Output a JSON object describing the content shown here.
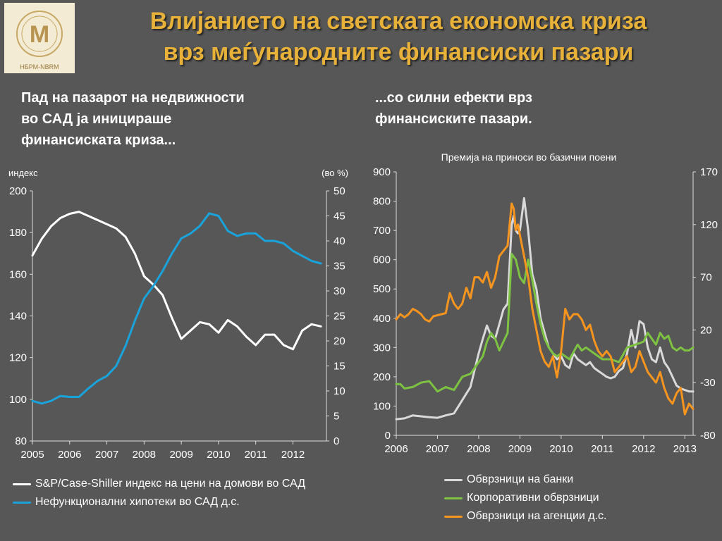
{
  "header": {
    "title_line1": "Влијанието на светската економска криза",
    "title_line2": "врз меѓународните финансиски пазари",
    "logo_text": "НБРМ-NBRM"
  },
  "left_panel": {
    "heading_line1": "Пад на пазарот на недвижности",
    "heading_line2": "во САД ја иницираше",
    "heading_line3": "финансиската криза...",
    "ylabel_left": "индекс",
    "ylabel_right": "(во %)"
  },
  "right_panel": {
    "heading_line1": "...со силни ефекти врз",
    "heading_line2": "финансиските пазари.",
    "chart_title": "Премија  на приноси во базични поени"
  },
  "colors": {
    "title": "#E8B23A",
    "background": "#575757",
    "white_series": "#FFFFFF",
    "blue_series": "#1AA3DB",
    "green_series": "#7DC242",
    "orange_series": "#F5941E",
    "gray_series": "#D9D9D9"
  },
  "chart_data": [
    {
      "type": "line",
      "x_ticks": [
        "2005",
        "2006",
        "2007",
        "2008",
        "2009",
        "2010",
        "2011",
        "2012"
      ],
      "ylim_left": [
        80,
        200
      ],
      "y_ticks_left": [
        "80",
        "100",
        "120",
        "140",
        "160",
        "180",
        "200"
      ],
      "ylim_right": [
        0,
        50
      ],
      "y_ticks_right": [
        "0",
        "5",
        "10",
        "15",
        "20",
        "25",
        "30",
        "35",
        "40",
        "45",
        "50"
      ],
      "xlim": [
        2005.0,
        2012.9
      ],
      "series": [
        {
          "name": "S&P/Case-Shiller индекс на цени на домови во САД",
          "axis": "left",
          "color": "#FFFFFF",
          "x": [
            2005.0,
            2005.25,
            2005.5,
            2005.75,
            2006.0,
            2006.25,
            2006.5,
            2006.75,
            2007.0,
            2007.25,
            2007.5,
            2007.75,
            2008.0,
            2008.25,
            2008.5,
            2008.75,
            2009.0,
            2009.25,
            2009.5,
            2009.75,
            2010.0,
            2010.25,
            2010.5,
            2010.75,
            2011.0,
            2011.25,
            2011.5,
            2011.75,
            2012.0,
            2012.25,
            2012.5,
            2012.75
          ],
          "values": [
            169,
            177,
            183,
            187,
            189,
            190,
            188,
            186,
            184,
            182,
            178,
            170,
            159,
            155,
            150,
            139,
            129,
            133,
            137,
            136,
            132,
            138,
            135,
            130,
            126,
            131,
            131,
            126,
            124,
            133,
            136,
            135
          ]
        },
        {
          "name": "Нефункционални хипотеки во САД д.с.",
          "axis": "right",
          "color": "#1AA3DB",
          "x": [
            2005.0,
            2005.25,
            2005.5,
            2005.75,
            2006.0,
            2006.25,
            2006.5,
            2006.75,
            2007.0,
            2007.25,
            2007.5,
            2007.75,
            2008.0,
            2008.25,
            2008.5,
            2008.75,
            2009.0,
            2009.25,
            2009.5,
            2009.75,
            2010.0,
            2010.25,
            2010.5,
            2010.75,
            2011.0,
            2011.25,
            2011.5,
            2011.75,
            2012.0,
            2012.25,
            2012.5,
            2012.75
          ],
          "values": [
            8,
            7.5,
            8,
            9,
            8.8,
            8.8,
            10.5,
            12,
            13,
            15,
            19,
            24,
            28.5,
            31,
            34,
            37.5,
            40.5,
            41.5,
            43,
            45.5,
            45,
            42,
            41,
            41.5,
            41.5,
            40,
            40,
            39.5,
            38,
            37,
            36,
            35.5
          ]
        }
      ]
    },
    {
      "type": "line",
      "title": "Премија  на приноси во базични поени",
      "x_ticks": [
        "2006",
        "2007",
        "2008",
        "2009",
        "2010",
        "2011",
        "2012",
        "2013"
      ],
      "ylim_left": [
        0,
        900
      ],
      "y_ticks_left": [
        "0",
        "100",
        "200",
        "300",
        "400",
        "500",
        "600",
        "700",
        "800",
        "900"
      ],
      "ylim_right": [
        -80,
        170
      ],
      "y_ticks_right": [
        "-80",
        "-30",
        "20",
        "70",
        "120",
        "170"
      ],
      "xlim": [
        2006.0,
        2013.2
      ],
      "series": [
        {
          "name": "Обврзници на банки",
          "axis": "left",
          "color": "#D9D9D9",
          "x": [
            2006.0,
            2006.2,
            2006.4,
            2006.6,
            2006.8,
            2007.0,
            2007.2,
            2007.4,
            2007.6,
            2007.8,
            2008.0,
            2008.1,
            2008.2,
            2008.3,
            2008.4,
            2008.5,
            2008.6,
            2008.7,
            2008.8,
            2008.85,
            2008.9,
            2008.95,
            2009.0,
            2009.1,
            2009.2,
            2009.3,
            2009.4,
            2009.5,
            2009.6,
            2009.7,
            2009.8,
            2009.9,
            2010.0,
            2010.1,
            2010.2,
            2010.3,
            2010.4,
            2010.5,
            2010.6,
            2010.7,
            2010.8,
            2010.9,
            2011.0,
            2011.1,
            2011.2,
            2011.3,
            2011.4,
            2011.5,
            2011.6,
            2011.7,
            2011.8,
            2011.9,
            2012.0,
            2012.1,
            2012.2,
            2012.3,
            2012.4,
            2012.5,
            2012.6,
            2012.7,
            2012.8,
            2012.9,
            2013.0,
            2013.1,
            2013.2
          ],
          "values": [
            55,
            58,
            68,
            65,
            62,
            60,
            68,
            75,
            120,
            165,
            280,
            330,
            375,
            340,
            330,
            380,
            430,
            450,
            720,
            750,
            700,
            690,
            700,
            810,
            700,
            550,
            500,
            400,
            350,
            300,
            280,
            260,
            270,
            240,
            230,
            280,
            260,
            250,
            240,
            250,
            230,
            220,
            210,
            200,
            195,
            200,
            220,
            230,
            280,
            360,
            300,
            390,
            380,
            300,
            260,
            250,
            300,
            250,
            230,
            200,
            170,
            160,
            155,
            150,
            150
          ]
        },
        {
          "name": "Корпоративни обврзници",
          "axis": "left",
          "color": "#7DC242",
          "x": [
            2006.0,
            2006.1,
            2006.2,
            2006.4,
            2006.6,
            2006.8,
            2007.0,
            2007.2,
            2007.4,
            2007.6,
            2007.8,
            2008.0,
            2008.1,
            2008.2,
            2008.3,
            2008.4,
            2008.5,
            2008.6,
            2008.7,
            2008.8,
            2008.9,
            2009.0,
            2009.1,
            2009.2,
            2009.3,
            2009.4,
            2009.5,
            2009.6,
            2009.7,
            2009.8,
            2009.9,
            2010.0,
            2010.2,
            2010.4,
            2010.5,
            2010.6,
            2010.8,
            2011.0,
            2011.2,
            2011.4,
            2011.6,
            2011.8,
            2012.0,
            2012.1,
            2012.2,
            2012.3,
            2012.4,
            2012.5,
            2012.6,
            2012.7,
            2012.8,
            2012.9,
            2013.0,
            2013.1,
            2013.2
          ],
          "values": [
            175,
            175,
            160,
            165,
            180,
            185,
            150,
            165,
            155,
            200,
            210,
            250,
            270,
            320,
            350,
            330,
            290,
            320,
            350,
            620,
            600,
            540,
            520,
            600,
            530,
            450,
            380,
            330,
            300,
            280,
            270,
            280,
            260,
            310,
            290,
            300,
            280,
            260,
            260,
            250,
            300,
            310,
            320,
            350,
            330,
            310,
            350,
            330,
            340,
            300,
            290,
            300,
            290,
            290,
            300
          ]
        },
        {
          "name": "Обврзници на агенции д.с.",
          "axis": "right",
          "color": "#F5941E",
          "x": [
            2006.0,
            2006.1,
            2006.2,
            2006.3,
            2006.4,
            2006.5,
            2006.6,
            2006.7,
            2006.8,
            2006.9,
            2007.0,
            2007.1,
            2007.2,
            2007.3,
            2007.4,
            2007.5,
            2007.6,
            2007.7,
            2007.8,
            2007.9,
            2008.0,
            2008.1,
            2008.2,
            2008.3,
            2008.4,
            2008.5,
            2008.6,
            2008.7,
            2008.8,
            2008.85,
            2008.9,
            2008.95,
            2009.0,
            2009.1,
            2009.2,
            2009.3,
            2009.4,
            2009.5,
            2009.6,
            2009.7,
            2009.8,
            2009.9,
            2010.0,
            2010.1,
            2010.2,
            2010.3,
            2010.4,
            2010.5,
            2010.6,
            2010.7,
            2010.8,
            2010.9,
            2011.0,
            2011.1,
            2011.2,
            2011.3,
            2011.4,
            2011.5,
            2011.6,
            2011.7,
            2011.8,
            2011.9,
            2012.0,
            2012.1,
            2012.2,
            2012.3,
            2012.4,
            2012.5,
            2012.6,
            2012.7,
            2012.8,
            2012.9,
            2013.0,
            2013.1,
            2013.2
          ],
          "values": [
            30,
            35,
            32,
            35,
            40,
            38,
            35,
            30,
            28,
            33,
            34,
            35,
            36,
            55,
            45,
            40,
            45,
            60,
            50,
            70,
            70,
            65,
            75,
            60,
            70,
            90,
            95,
            100,
            140,
            135,
            115,
            120,
            110,
            90,
            70,
            40,
            20,
            0,
            -10,
            -15,
            -5,
            -25,
            0,
            40,
            30,
            35,
            35,
            30,
            20,
            25,
            10,
            0,
            -5,
            0,
            -5,
            -20,
            -15,
            -10,
            -5,
            -20,
            -15,
            0,
            -10,
            -20,
            -25,
            -30,
            -20,
            -35,
            -45,
            -50,
            -40,
            -35,
            -60,
            -50,
            -55
          ]
        }
      ]
    }
  ]
}
